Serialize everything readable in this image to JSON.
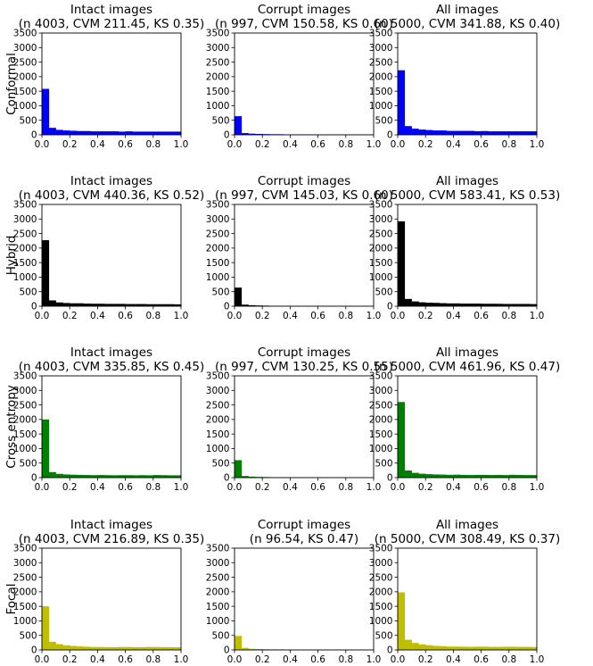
{
  "figure": {
    "row_labels": [
      "Conformal",
      "Hybrid",
      "Cross entropy",
      "Focal"
    ],
    "row_colors": [
      "#0000ff",
      "#000000",
      "#008000",
      "#bfbf00"
    ]
  },
  "chart_data": [
    {
      "type": "bar",
      "row": 0,
      "col": 0,
      "title": "Intact images",
      "subtitle": "(n 4003, CVM 211.45, KS 0.35)",
      "ylabel": "Conformal",
      "xlim": [
        0,
        1
      ],
      "ylim": [
        0,
        3500
      ],
      "xticks": [
        "0.0",
        "0.2",
        "0.4",
        "0.6",
        "0.8",
        "1.0"
      ],
      "yticks": [
        "0",
        "500",
        "1000",
        "1500",
        "2000",
        "2500",
        "3000",
        "3500"
      ],
      "bin_width": 0.05,
      "values": [
        1580,
        240,
        170,
        150,
        140,
        130,
        130,
        120,
        120,
        120,
        120,
        110,
        120,
        110,
        110,
        110,
        110,
        110,
        110,
        110
      ]
    },
    {
      "type": "bar",
      "row": 0,
      "col": 1,
      "title": "Corrupt images",
      "subtitle": "(n 997, CVM 150.58, KS 0.60)",
      "ylabel": "",
      "xlim": [
        0,
        1
      ],
      "ylim": [
        0,
        3500
      ],
      "xticks": [
        "0.0",
        "0.2",
        "0.4",
        "0.6",
        "0.8",
        "1.0"
      ],
      "yticks": [
        "0",
        "500",
        "1000",
        "1500",
        "2000",
        "2500",
        "3000",
        "3500"
      ],
      "bin_width": 0.05,
      "values": [
        640,
        60,
        40,
        30,
        25,
        20,
        20,
        15,
        15,
        15,
        15,
        15,
        10,
        10,
        10,
        10,
        10,
        10,
        10,
        10
      ]
    },
    {
      "type": "bar",
      "row": 0,
      "col": 2,
      "title": "All images",
      "subtitle": "(n 5000, CVM 341.88, KS 0.40)",
      "ylabel": "",
      "xlim": [
        0,
        1
      ],
      "ylim": [
        0,
        3500
      ],
      "xticks": [
        "0.0",
        "0.2",
        "0.4",
        "0.6",
        "0.8",
        "1.0"
      ],
      "yticks": [
        "0",
        "500",
        "1000",
        "1500",
        "2000",
        "2500",
        "3000",
        "3500"
      ],
      "bin_width": 0.05,
      "values": [
        2220,
        300,
        210,
        180,
        165,
        150,
        150,
        135,
        135,
        135,
        135,
        125,
        130,
        120,
        120,
        120,
        120,
        120,
        120,
        120
      ]
    },
    {
      "type": "bar",
      "row": 1,
      "col": 0,
      "title": "Intact images",
      "subtitle": "(n 4003, CVM 440.36, KS 0.52)",
      "ylabel": "Hybrid",
      "xlim": [
        0,
        1
      ],
      "ylim": [
        0,
        3500
      ],
      "xticks": [
        "0.0",
        "0.2",
        "0.4",
        "0.6",
        "0.8",
        "1.0"
      ],
      "yticks": [
        "0",
        "500",
        "1000",
        "1500",
        "2000",
        "2500",
        "3000",
        "3500"
      ],
      "bin_width": 0.05,
      "values": [
        2270,
        200,
        130,
        110,
        100,
        100,
        90,
        85,
        85,
        80,
        80,
        80,
        75,
        75,
        75,
        70,
        70,
        70,
        70,
        65
      ]
    },
    {
      "type": "bar",
      "row": 1,
      "col": 1,
      "title": "Corrupt images",
      "subtitle": "(n 997, CVM 145.03, KS 0.60)",
      "ylabel": "",
      "xlim": [
        0,
        1
      ],
      "ylim": [
        0,
        3500
      ],
      "xticks": [
        "0.0",
        "0.2",
        "0.4",
        "0.6",
        "0.8",
        "1.0"
      ],
      "yticks": [
        "0",
        "500",
        "1000",
        "1500",
        "2000",
        "2500",
        "3000",
        "3500"
      ],
      "bin_width": 0.05,
      "values": [
        640,
        55,
        35,
        25,
        20,
        15,
        15,
        12,
        12,
        10,
        10,
        10,
        10,
        10,
        8,
        8,
        8,
        8,
        8,
        8
      ]
    },
    {
      "type": "bar",
      "row": 1,
      "col": 2,
      "title": "All images",
      "subtitle": "(n 5000, CVM 583.41, KS 0.53)",
      "ylabel": "",
      "xlim": [
        0,
        1
      ],
      "ylim": [
        0,
        3500
      ],
      "xticks": [
        "0.0",
        "0.2",
        "0.4",
        "0.6",
        "0.8",
        "1.0"
      ],
      "yticks": [
        "0",
        "500",
        "1000",
        "1500",
        "2000",
        "2500",
        "3000",
        "3500"
      ],
      "bin_width": 0.05,
      "values": [
        2920,
        250,
        165,
        135,
        120,
        115,
        105,
        97,
        97,
        90,
        90,
        90,
        85,
        85,
        83,
        78,
        78,
        78,
        78,
        73
      ]
    },
    {
      "type": "bar",
      "row": 2,
      "col": 0,
      "title": "Intact images",
      "subtitle": "(n 4003, CVM 335.85, KS 0.45)",
      "ylabel": "Cross entropy",
      "xlim": [
        0,
        1
      ],
      "ylim": [
        0,
        3500
      ],
      "xticks": [
        "0.0",
        "0.2",
        "0.4",
        "0.6",
        "0.8",
        "1.0"
      ],
      "yticks": [
        "0",
        "500",
        "1000",
        "1500",
        "2000",
        "2500",
        "3000",
        "3500"
      ],
      "bin_width": 0.05,
      "values": [
        2000,
        190,
        130,
        110,
        100,
        95,
        90,
        85,
        90,
        85,
        80,
        85,
        85,
        80,
        85,
        80,
        90,
        85,
        80,
        80
      ]
    },
    {
      "type": "bar",
      "row": 2,
      "col": 1,
      "title": "Corrupt images",
      "subtitle": "(n 997, CVM 130.25, KS 0.55)",
      "ylabel": "",
      "xlim": [
        0,
        1
      ],
      "ylim": [
        0,
        3500
      ],
      "xticks": [
        "0.0",
        "0.2",
        "0.4",
        "0.6",
        "0.8",
        "1.0"
      ],
      "yticks": [
        "0",
        "500",
        "1000",
        "1500",
        "2000",
        "2500",
        "3000",
        "3500"
      ],
      "bin_width": 0.05,
      "values": [
        600,
        55,
        35,
        25,
        20,
        15,
        15,
        12,
        12,
        10,
        10,
        10,
        10,
        10,
        8,
        8,
        8,
        8,
        8,
        8
      ]
    },
    {
      "type": "bar",
      "row": 2,
      "col": 2,
      "title": "All images",
      "subtitle": "(n 5000, CVM 461.96, KS 0.47)",
      "ylabel": "",
      "xlim": [
        0,
        1
      ],
      "ylim": [
        0,
        3500
      ],
      "xticks": [
        "0.0",
        "0.2",
        "0.4",
        "0.6",
        "0.8",
        "1.0"
      ],
      "yticks": [
        "0",
        "500",
        "1000",
        "1500",
        "2000",
        "2500",
        "3000",
        "3500"
      ],
      "bin_width": 0.05,
      "values": [
        2600,
        245,
        165,
        135,
        120,
        110,
        105,
        97,
        102,
        95,
        90,
        95,
        95,
        90,
        93,
        88,
        98,
        93,
        88,
        88
      ]
    },
    {
      "type": "bar",
      "row": 3,
      "col": 0,
      "title": "Intact images",
      "subtitle": "(n 4003, CVM 216.89, KS 0.35)",
      "ylabel": "Focal",
      "xlim": [
        0,
        1
      ],
      "ylim": [
        0,
        3500
      ],
      "xticks": [
        "0.0",
        "0.2",
        "0.4",
        "0.6",
        "0.8",
        "1.0"
      ],
      "yticks": [
        "0",
        "500",
        "1000",
        "1500",
        "2000",
        "2500",
        "3000",
        "3500"
      ],
      "bin_width": 0.05,
      "values": [
        1500,
        280,
        200,
        160,
        140,
        120,
        110,
        100,
        100,
        95,
        95,
        100,
        100,
        95,
        95,
        100,
        100,
        95,
        95,
        90
      ]
    },
    {
      "type": "bar",
      "row": 3,
      "col": 1,
      "title": "Corrupt images",
      "subtitle": "(n 96.54, KS 0.47)",
      "ylabel": "",
      "xlim": [
        0,
        1
      ],
      "ylim": [
        0,
        3500
      ],
      "xticks": [
        "0.0",
        "0.2",
        "0.4",
        "0.6",
        "0.8",
        "1.0"
      ],
      "yticks": [
        "0",
        "500",
        "1000",
        "1500",
        "2000",
        "2500",
        "3000",
        "3500"
      ],
      "bin_width": 0.05,
      "values": [
        480,
        70,
        40,
        30,
        25,
        20,
        20,
        15,
        15,
        15,
        12,
        12,
        12,
        10,
        10,
        10,
        10,
        10,
        10,
        10
      ]
    },
    {
      "type": "bar",
      "row": 3,
      "col": 2,
      "title": "All images",
      "subtitle": "(n 5000, CVM 308.49, KS 0.37)",
      "ylabel": "",
      "xlim": [
        0,
        1
      ],
      "ylim": [
        0,
        3500
      ],
      "xticks": [
        "0.0",
        "0.2",
        "0.4",
        "0.6",
        "0.8",
        "1.0"
      ],
      "yticks": [
        "0",
        "500",
        "1000",
        "1500",
        "2000",
        "2500",
        "3000",
        "3500"
      ],
      "bin_width": 0.05,
      "values": [
        1980,
        350,
        240,
        190,
        165,
        140,
        130,
        115,
        115,
        110,
        107,
        112,
        112,
        105,
        105,
        110,
        110,
        105,
        105,
        100
      ]
    }
  ]
}
